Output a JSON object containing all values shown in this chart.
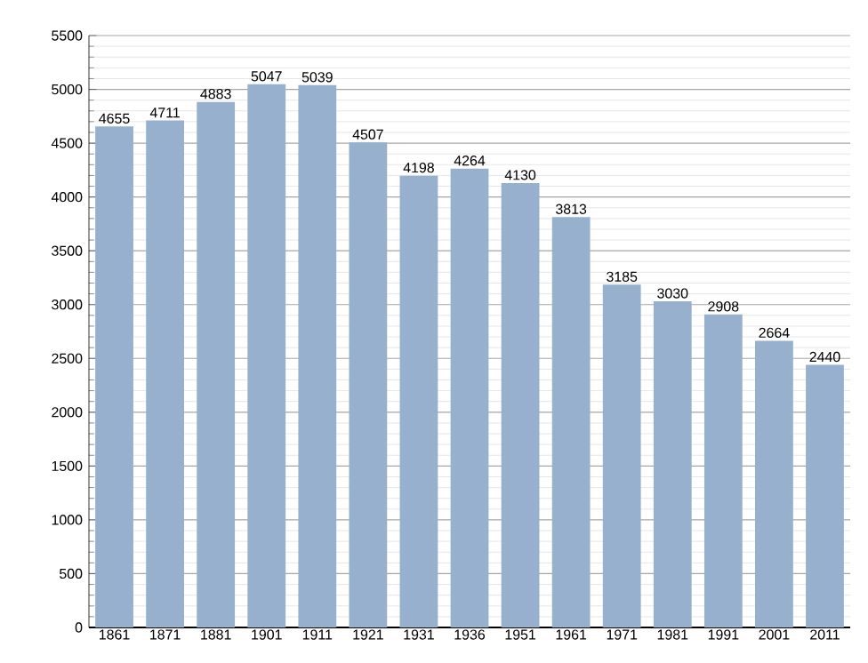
{
  "chart_data": {
    "type": "bar",
    "categories": [
      "1861",
      "1871",
      "1881",
      "1901",
      "1911",
      "1921",
      "1931",
      "1936",
      "1951",
      "1961",
      "1971",
      "1981",
      "1991",
      "2001",
      "2011"
    ],
    "values": [
      4655,
      4711,
      4883,
      5047,
      5039,
      4507,
      4198,
      4264,
      4130,
      3813,
      3185,
      3030,
      2908,
      2664,
      2440
    ],
    "color": "#97b0cd",
    "ylim": [
      0,
      5500
    ],
    "yticks": [
      0,
      500,
      1000,
      1500,
      2000,
      2500,
      3000,
      3500,
      4000,
      4500,
      5000,
      5500
    ],
    "grid": "y",
    "data_labels": true
  }
}
